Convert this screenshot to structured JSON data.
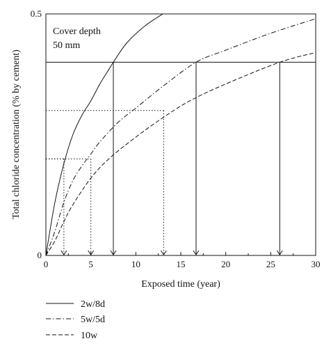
{
  "chart_data": {
    "type": "line",
    "xlabel": "Exposed time (year)",
    "ylabel": "Total chloride concentration (% by cement)",
    "xlim": [
      0,
      30
    ],
    "ylim": [
      0,
      0.5
    ],
    "x_ticks": [
      "0",
      "5",
      "10",
      "15",
      "20",
      "25",
      "30"
    ],
    "y_ticks": [
      "0",
      "0.5"
    ],
    "annotation": [
      "Cover depth",
      "50 mm"
    ],
    "threshold_lines": [
      0.4
    ],
    "series": [
      {
        "name": "2w/8d",
        "style": "solid",
        "x": [
          0,
          1,
          2,
          3,
          4,
          5,
          6,
          7,
          7.5,
          9,
          11,
          13
        ],
        "y": [
          0,
          0.11,
          0.19,
          0.25,
          0.29,
          0.32,
          0.355,
          0.385,
          0.4,
          0.44,
          0.475,
          0.5
        ]
      },
      {
        "name": "5w/5d",
        "style": "dashdot",
        "x": [
          0,
          1,
          2,
          3,
          4,
          5,
          6,
          8,
          10,
          13,
          16.7,
          20,
          25,
          30
        ],
        "y": [
          0,
          0.05,
          0.11,
          0.155,
          0.185,
          0.21,
          0.235,
          0.275,
          0.305,
          0.35,
          0.4,
          0.425,
          0.46,
          0.49
        ]
      },
      {
        "name": "10w",
        "style": "dashed",
        "x": [
          0,
          1,
          2,
          3,
          5,
          7,
          10,
          13,
          16,
          20,
          26,
          30
        ],
        "y": [
          0,
          0.03,
          0.07,
          0.105,
          0.16,
          0.2,
          0.245,
          0.285,
          0.32,
          0.355,
          0.4,
          0.42
        ]
      }
    ],
    "markers": [
      {
        "x": 2,
        "y": 0.2,
        "style": "dotted"
      },
      {
        "x": 5,
        "y": 0.2,
        "style": "dotted"
      },
      {
        "x": 13.1,
        "y": 0.3,
        "style": "dotted"
      },
      {
        "x": 7.5,
        "y": 0.4,
        "style": "solid"
      },
      {
        "x": 16.7,
        "y": 0.4,
        "style": "solid"
      },
      {
        "x": 26,
        "y": 0.4,
        "style": "solid"
      }
    ],
    "legend_position": "bottom"
  }
}
